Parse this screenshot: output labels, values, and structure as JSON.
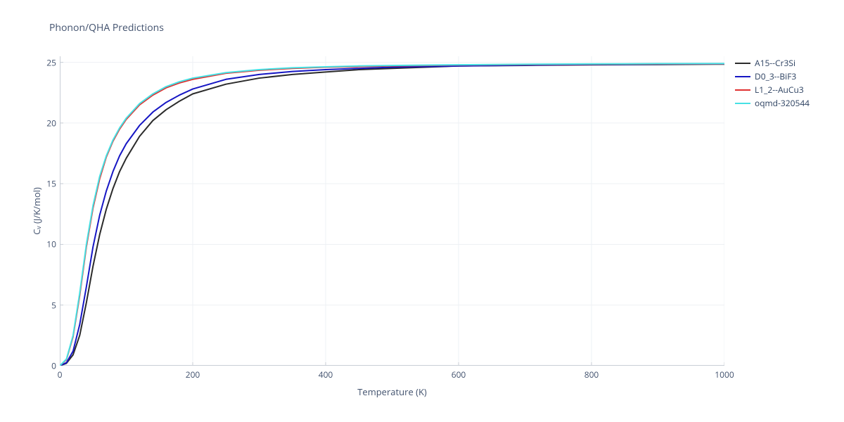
{
  "chart": {
    "type": "line",
    "title": "Phonon/QHA Predictions",
    "title_fontsize": 14,
    "title_color": "#42526e",
    "xlabel": "Temperature (K)",
    "ylabel": "Cᵥ (J/K/mol)",
    "label_fontsize": 13,
    "label_color": "#42526e",
    "tick_fontsize": 12,
    "tick_color": "#42526e",
    "background_color": "#ffffff",
    "plot_bg_color": "#ffffff",
    "grid_color": "#eef0f4",
    "axis_line_color": "#c8ced6",
    "xlim": [
      0,
      1000
    ],
    "ylim": [
      0,
      25.5
    ],
    "xticks": [
      0,
      200,
      400,
      600,
      800,
      1000
    ],
    "yticks": [
      0,
      5,
      10,
      15,
      20,
      25
    ],
    "line_width": 2,
    "legend_fontsize": 12,
    "legend_position": "right",
    "series": [
      {
        "name": "A15--Cr3Si",
        "color": "#2b2b2b",
        "x": [
          0,
          10,
          20,
          30,
          40,
          50,
          60,
          70,
          80,
          90,
          100,
          120,
          140,
          160,
          180,
          200,
          250,
          300,
          350,
          400,
          450,
          500,
          600,
          700,
          800,
          900,
          1000
        ],
        "y": [
          0,
          0.2,
          0.9,
          2.5,
          5.2,
          8.2,
          10.8,
          12.9,
          14.6,
          16.0,
          17.1,
          18.9,
          20.2,
          21.1,
          21.8,
          22.4,
          23.2,
          23.7,
          24.0,
          24.2,
          24.4,
          24.5,
          24.7,
          24.75,
          24.8,
          24.82,
          24.85
        ]
      },
      {
        "name": "D0_3--BiF3",
        "color": "#1616c4",
        "x": [
          0,
          10,
          20,
          30,
          40,
          50,
          60,
          70,
          80,
          90,
          100,
          120,
          140,
          160,
          180,
          200,
          250,
          300,
          350,
          400,
          450,
          500,
          600,
          700,
          800,
          900,
          1000
        ],
        "y": [
          0,
          0.25,
          1.2,
          3.4,
          6.5,
          9.8,
          12.4,
          14.4,
          16.0,
          17.3,
          18.3,
          19.8,
          20.9,
          21.7,
          22.3,
          22.8,
          23.6,
          24.0,
          24.25,
          24.4,
          24.5,
          24.6,
          24.7,
          24.77,
          24.82,
          24.85,
          24.87
        ]
      },
      {
        "name": "L1_2--AuCu3",
        "color": "#e03030",
        "x": [
          0,
          10,
          20,
          30,
          40,
          50,
          60,
          70,
          80,
          90,
          100,
          120,
          140,
          160,
          180,
          200,
          250,
          300,
          350,
          400,
          450,
          500,
          600,
          700,
          800,
          900,
          1000
        ],
        "y": [
          0,
          0.5,
          2.4,
          5.8,
          9.8,
          13.0,
          15.4,
          17.2,
          18.5,
          19.5,
          20.3,
          21.5,
          22.3,
          22.9,
          23.3,
          23.6,
          24.1,
          24.35,
          24.5,
          24.6,
          24.65,
          24.7,
          24.78,
          24.82,
          24.85,
          24.87,
          24.88
        ]
      },
      {
        "name": "oqmd-320544",
        "color": "#46e1e4",
        "x": [
          0,
          10,
          20,
          30,
          40,
          50,
          60,
          70,
          80,
          90,
          100,
          120,
          140,
          160,
          180,
          200,
          250,
          300,
          350,
          400,
          450,
          500,
          600,
          700,
          800,
          900,
          1000
        ],
        "y": [
          0,
          0.55,
          2.5,
          6.0,
          10.0,
          13.2,
          15.6,
          17.3,
          18.6,
          19.6,
          20.4,
          21.6,
          22.4,
          23.0,
          23.4,
          23.7,
          24.15,
          24.4,
          24.55,
          24.63,
          24.7,
          24.74,
          24.8,
          24.84,
          24.87,
          24.89,
          24.9
        ]
      }
    ]
  }
}
